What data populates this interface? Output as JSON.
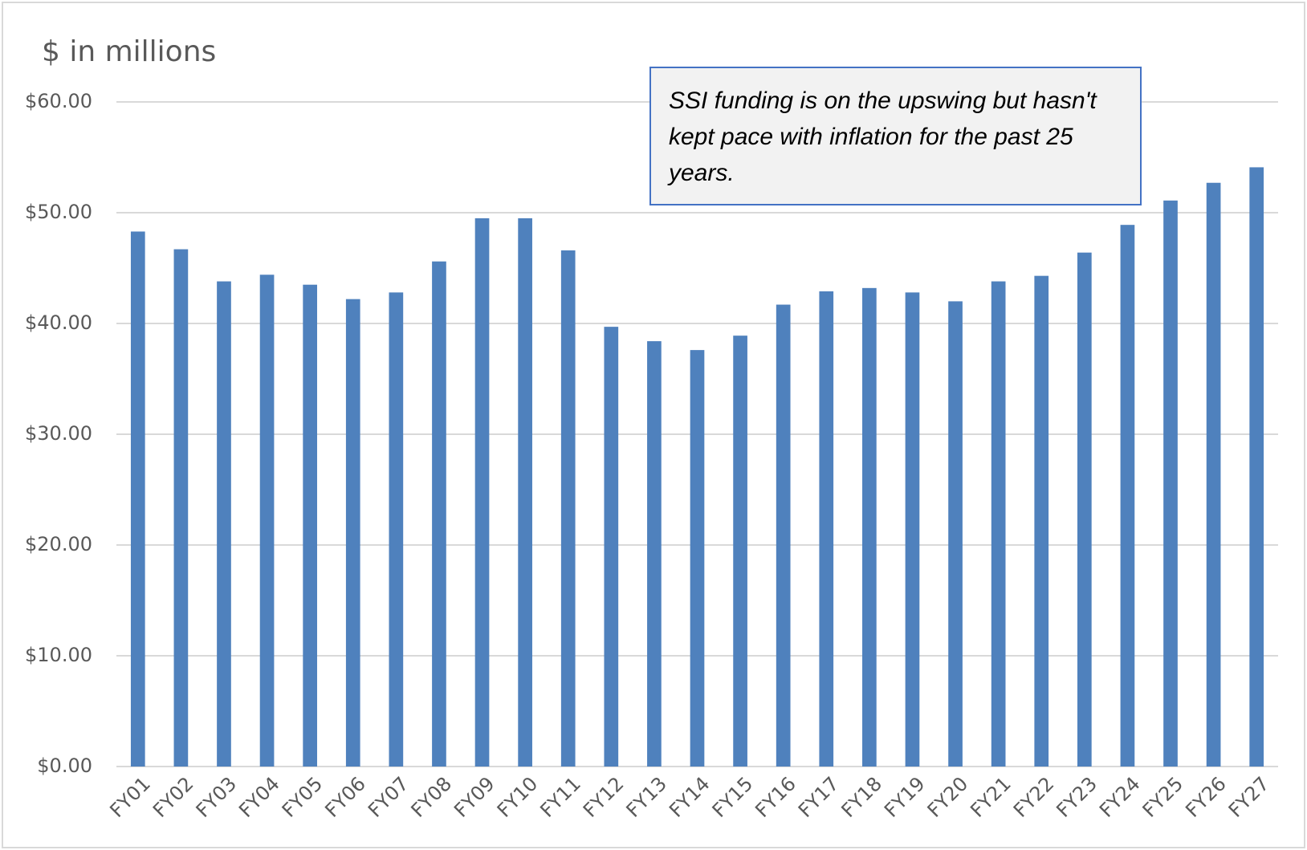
{
  "chart_data": {
    "type": "bar",
    "y_axis_label": "$ in millions",
    "annotation": "SSI funding is on the upswing but hasn't kept pace with inflation for the past 25 years.",
    "categories": [
      "FY01",
      "FY02",
      "FY03",
      "FY04",
      "FY05",
      "FY06",
      "FY07",
      "FY08",
      "FY09",
      "FY10",
      "FY11",
      "FY12",
      "FY13",
      "FY14",
      "FY15",
      "FY16",
      "FY17",
      "FY18",
      "FY19",
      "FY20",
      "FY21",
      "FY22",
      "FY23",
      "FY24",
      "FY25",
      "FY26",
      "FY27"
    ],
    "values": [
      48.3,
      46.7,
      43.8,
      44.4,
      43.5,
      42.2,
      42.8,
      45.6,
      49.5,
      49.5,
      46.6,
      39.7,
      38.4,
      37.6,
      38.9,
      41.7,
      42.9,
      43.2,
      42.8,
      42.0,
      43.8,
      44.3,
      46.4,
      48.9,
      51.1,
      52.7,
      54.1
    ],
    "color": "#4f81bd",
    "ylim": [
      0,
      60
    ],
    "yticks": [
      {
        "value": 0,
        "label": "$0.00"
      },
      {
        "value": 10,
        "label": "$10.00"
      },
      {
        "value": 20,
        "label": "$20.00"
      },
      {
        "value": 30,
        "label": "$30.00"
      },
      {
        "value": 40,
        "label": "$40.00"
      },
      {
        "value": 50,
        "label": "$50.00"
      },
      {
        "value": 60,
        "label": "$60.00"
      }
    ],
    "grid": true
  }
}
